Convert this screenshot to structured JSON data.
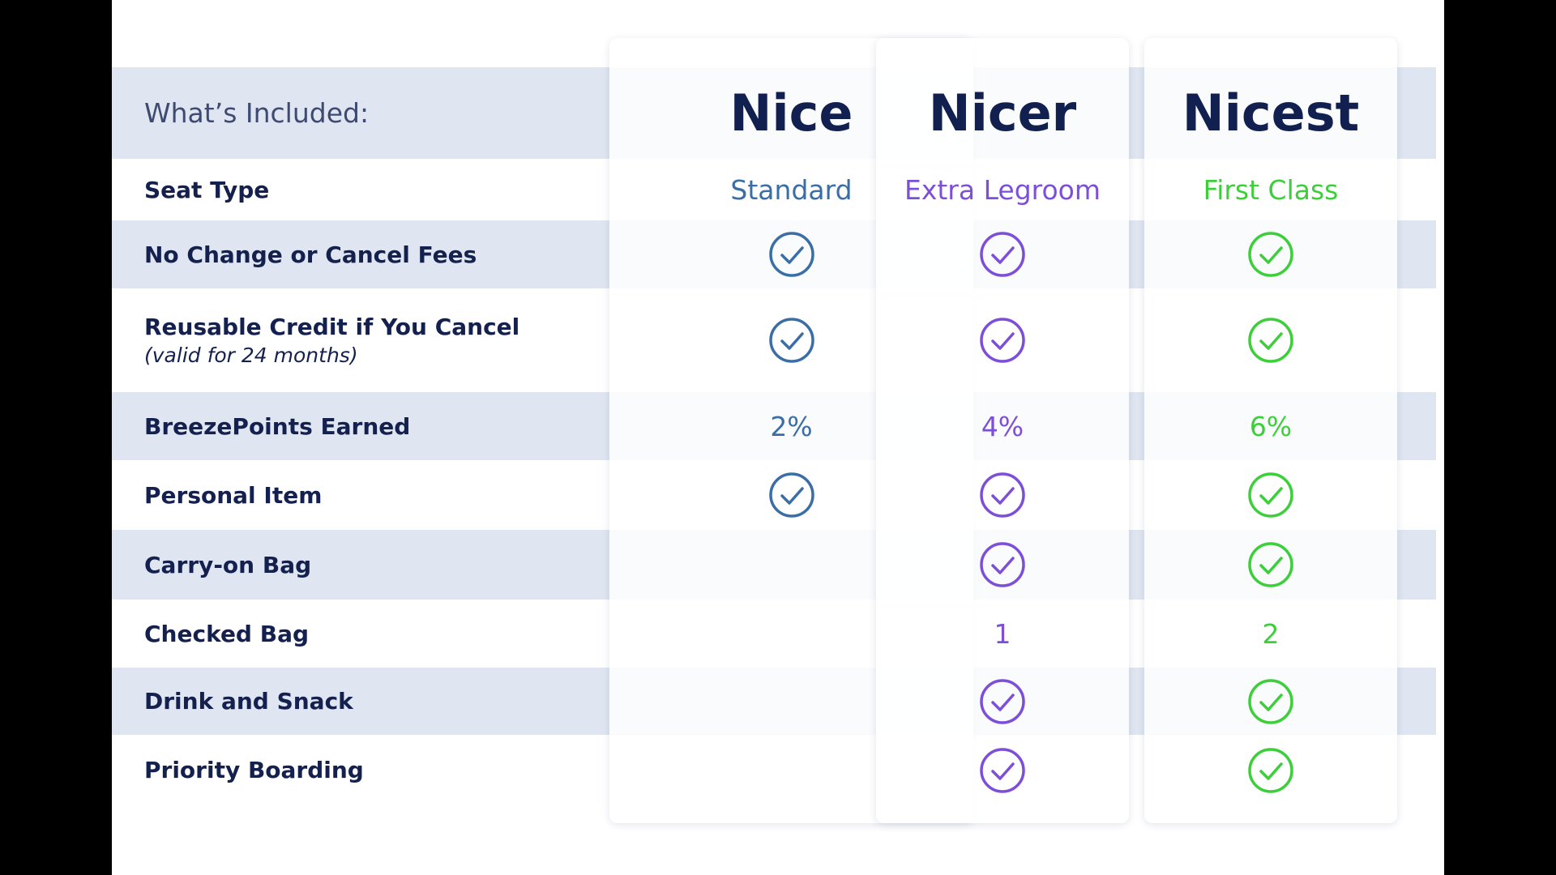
{
  "header": {
    "label": "What’s Included:"
  },
  "tiers": [
    {
      "name": "Nice",
      "color": "#3b6ea6"
    },
    {
      "name": "Nicer",
      "color": "#7d4fd8"
    },
    {
      "name": "Nicest",
      "color": "#3ccf3a"
    }
  ],
  "rows": [
    {
      "label": "Seat Type",
      "cells": [
        "Standard",
        "Extra Legroom",
        "First Class"
      ]
    },
    {
      "label": "No Change or Cancel Fees",
      "cells": [
        true,
        true,
        true
      ]
    },
    {
      "label": "Reusable Credit if You Cancel",
      "note": "(valid for 24 months)",
      "cells": [
        true,
        true,
        true
      ]
    },
    {
      "label": "BreezePoints Earned",
      "cells": [
        "2%",
        "4%",
        "6%"
      ]
    },
    {
      "label": "Personal Item",
      "cells": [
        true,
        true,
        true
      ]
    },
    {
      "label": "Carry-on Bag",
      "cells": [
        null,
        true,
        true
      ]
    },
    {
      "label": "Checked Bag",
      "cells": [
        null,
        "1",
        "2"
      ]
    },
    {
      "label": "Drink and Snack",
      "cells": [
        null,
        true,
        true
      ]
    },
    {
      "label": "Priority Boarding",
      "cells": [
        null,
        true,
        true
      ]
    }
  ]
}
